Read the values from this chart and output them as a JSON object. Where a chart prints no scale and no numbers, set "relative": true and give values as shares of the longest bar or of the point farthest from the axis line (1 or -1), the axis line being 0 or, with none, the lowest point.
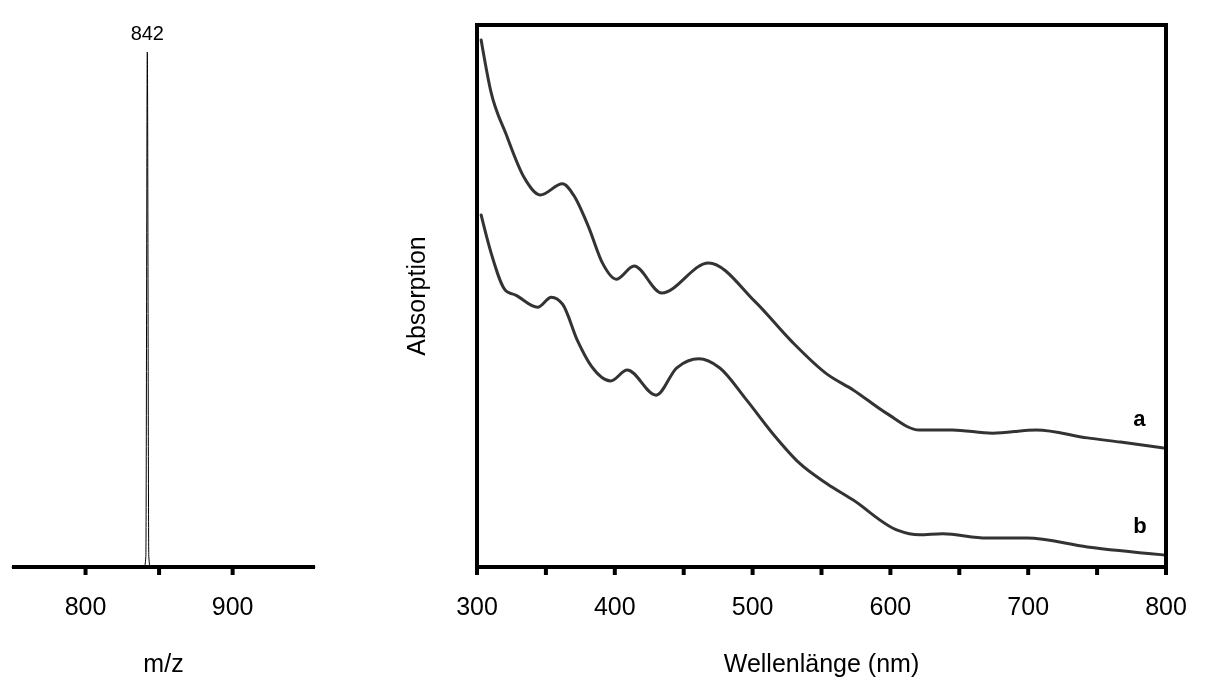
{
  "chart_data": [
    {
      "type": "line",
      "relative": true,
      "xlabel": "m/z",
      "xlim": [
        750,
        956
      ],
      "xticks": [
        800,
        {
          "value": 850,
          "label": null
        },
        900
      ],
      "series": [
        {
          "color": "#000000",
          "x": [
            750,
            840,
            841,
            842,
            843,
            844,
            956
          ],
          "values": [
            0,
            0,
            0.02,
            1,
            0.02,
            0,
            0
          ]
        }
      ],
      "annotations": [
        {
          "text": "842",
          "x": 842,
          "y": 1
        }
      ]
    },
    {
      "type": "line",
      "relative": true,
      "xlabel": "Wellenlänge (nm)",
      "ylabel": "Absorption",
      "xlim": [
        300,
        800
      ],
      "xticks": [
        300,
        {
          "value": 350,
          "label": null
        },
        400,
        {
          "value": 450,
          "label": null
        },
        500,
        {
          "value": 550,
          "label": null
        },
        600,
        {
          "value": 650,
          "label": null
        },
        700,
        {
          "value": 750,
          "label": null
        },
        800
      ],
      "series": [
        {
          "name": "a",
          "color": "#333333",
          "x": [
            303,
            310,
            321,
            334,
            346,
            362,
            370,
            381,
            391,
            401,
            414,
            434,
            468,
            502,
            528,
            554,
            573,
            597,
            621,
            645,
            674,
            706,
            743,
            767,
            798
          ],
          "values": [
            1.0,
            0.903,
            0.822,
            0.74,
            0.706,
            0.727,
            0.706,
            0.645,
            0.577,
            0.546,
            0.571,
            0.52,
            0.577,
            0.503,
            0.429,
            0.366,
            0.336,
            0.292,
            0.26,
            0.26,
            0.254,
            0.26,
            0.245,
            0.237,
            0.226
          ]
        },
        {
          "name": "b",
          "color": "#333333",
          "x": [
            303,
            310,
            321,
            328,
            344,
            354,
            362,
            373,
            383,
            397,
            409,
            430,
            445,
            461,
            476,
            495,
            515,
            534,
            554,
            573,
            605,
            621,
            638,
            670,
            699,
            743,
            798
          ],
          "values": [
            0.668,
            0.598,
            0.524,
            0.516,
            0.493,
            0.512,
            0.499,
            0.429,
            0.381,
            0.353,
            0.374,
            0.326,
            0.378,
            0.395,
            0.378,
            0.319,
            0.252,
            0.197,
            0.158,
            0.127,
            0.07,
            0.061,
            0.063,
            0.055,
            0.055,
            0.038,
            0.023
          ]
        }
      ]
    }
  ]
}
